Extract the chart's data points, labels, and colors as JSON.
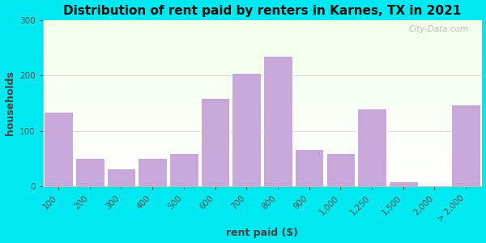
{
  "title": "Distribution of rent paid by renters in Karnes, TX in 2021",
  "xlabel": "rent paid ($)",
  "ylabel": "households",
  "bar_color": "#c8a8d8",
  "bar_edge_color": "#ffffff",
  "categories": [
    "100",
    "200",
    "300",
    "400",
    "500",
    "600",
    "700",
    "800",
    "900",
    "1,000",
    "1,250",
    "1,500",
    "2,000",
    "> 2,000"
  ],
  "values": [
    135,
    52,
    32,
    52,
    60,
    160,
    205,
    235,
    68,
    60,
    140,
    10,
    0,
    148
  ],
  "ylim": [
    0,
    300
  ],
  "yticks": [
    0,
    100,
    200,
    300
  ],
  "bg_outer": "#00e8f0",
  "title_fontsize": 11,
  "axis_label_fontsize": 9,
  "tick_fontsize": 7.5,
  "watermark": "City-Data.com"
}
